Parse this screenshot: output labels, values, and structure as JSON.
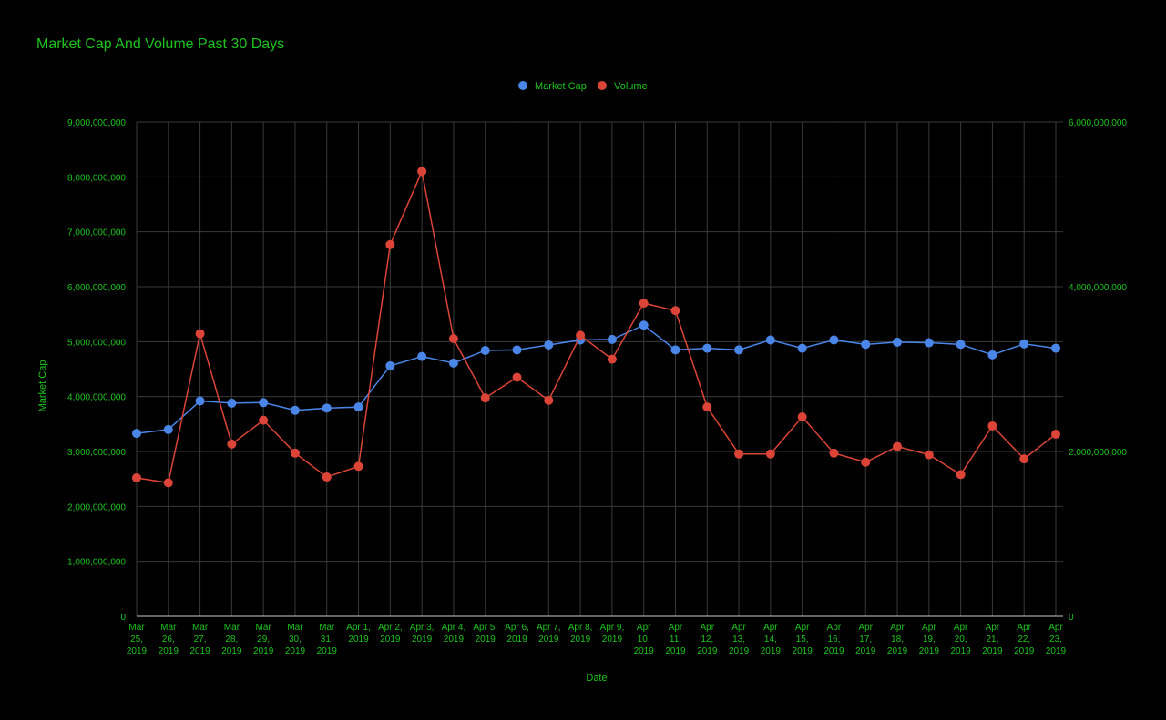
{
  "colors": {
    "background": "#000000",
    "text": "#1ec41e",
    "grid": "#3a3a3a",
    "market_cap": "#4a86e8",
    "volume": "#db4437"
  },
  "chart_data": {
    "type": "line",
    "title": "Market Cap And Volume Past 30 Days",
    "xlabel": "Date",
    "ylabel": "Market Cap",
    "ylabel_right": "",
    "legend_position": "top",
    "grid": true,
    "categories": [
      [
        "Mar",
        "25,",
        "2019"
      ],
      [
        "Mar",
        "26,",
        "2019"
      ],
      [
        "Mar",
        "27,",
        "2019"
      ],
      [
        "Mar",
        "28,",
        "2019"
      ],
      [
        "Mar",
        "29,",
        "2019"
      ],
      [
        "Mar",
        "30,",
        "2019"
      ],
      [
        "Mar",
        "31,",
        "2019"
      ],
      [
        "Apr 1,",
        "2019"
      ],
      [
        "Apr 2,",
        "2019"
      ],
      [
        "Apr 3,",
        "2019"
      ],
      [
        "Apr 4,",
        "2019"
      ],
      [
        "Apr 5,",
        "2019"
      ],
      [
        "Apr 6,",
        "2019"
      ],
      [
        "Apr 7,",
        "2019"
      ],
      [
        "Apr 8,",
        "2019"
      ],
      [
        "Apr 9,",
        "2019"
      ],
      [
        "Apr",
        "10,",
        "2019"
      ],
      [
        "Apr",
        "11,",
        "2019"
      ],
      [
        "Apr",
        "12,",
        "2019"
      ],
      [
        "Apr",
        "13,",
        "2019"
      ],
      [
        "Apr",
        "14,",
        "2019"
      ],
      [
        "Apr",
        "15,",
        "2019"
      ],
      [
        "Apr",
        "16,",
        "2019"
      ],
      [
        "Apr",
        "17,",
        "2019"
      ],
      [
        "Apr",
        "18,",
        "2019"
      ],
      [
        "Apr",
        "19,",
        "2019"
      ],
      [
        "Apr",
        "20,",
        "2019"
      ],
      [
        "Apr",
        "21,",
        "2019"
      ],
      [
        "Apr",
        "22,",
        "2019"
      ],
      [
        "Apr",
        "23,",
        "2019"
      ]
    ],
    "y_left": {
      "min": 0,
      "max": 9000000000,
      "ticks": [
        "0",
        "1,000,000,000",
        "2,000,000,000",
        "3,000,000,000",
        "4,000,000,000",
        "5,000,000,000",
        "6,000,000,000",
        "7,000,000,000",
        "8,000,000,000",
        "9,000,000,000"
      ],
      "tick_values": [
        0,
        1000000000,
        2000000000,
        3000000000,
        4000000000,
        5000000000,
        6000000000,
        7000000000,
        8000000000,
        9000000000
      ]
    },
    "y_right": {
      "min": 0,
      "max": 6000000000,
      "ticks": [
        "0",
        "2,000,000,000",
        "4,000,000,000",
        "6,000,000,000"
      ],
      "tick_values": [
        0,
        2000000000,
        4000000000,
        6000000000
      ]
    },
    "series": [
      {
        "name": "Market Cap",
        "axis": "left",
        "values": [
          3330000000,
          3400000000,
          3920000000,
          3880000000,
          3890000000,
          3750000000,
          3790000000,
          3810000000,
          4560000000,
          4730000000,
          4610000000,
          4840000000,
          4850000000,
          4940000000,
          5030000000,
          5040000000,
          5300000000,
          4850000000,
          4880000000,
          4850000000,
          5030000000,
          4880000000,
          5030000000,
          4950000000,
          4990000000,
          4980000000,
          4950000000,
          4760000000,
          4960000000,
          4880000000
        ]
      },
      {
        "name": "Volume",
        "axis": "right",
        "values": [
          1680000000,
          1620000000,
          3430000000,
          2090000000,
          2380000000,
          1980000000,
          1690000000,
          1820000000,
          4510000000,
          5400000000,
          3370000000,
          2650000000,
          2900000000,
          2620000000,
          3410000000,
          3120000000,
          3800000000,
          3710000000,
          2540000000,
          1970000000,
          1970000000,
          2420000000,
          1980000000,
          1870000000,
          2060000000,
          1960000000,
          1720000000,
          2310000000,
          1910000000,
          2210000000
        ]
      }
    ]
  }
}
